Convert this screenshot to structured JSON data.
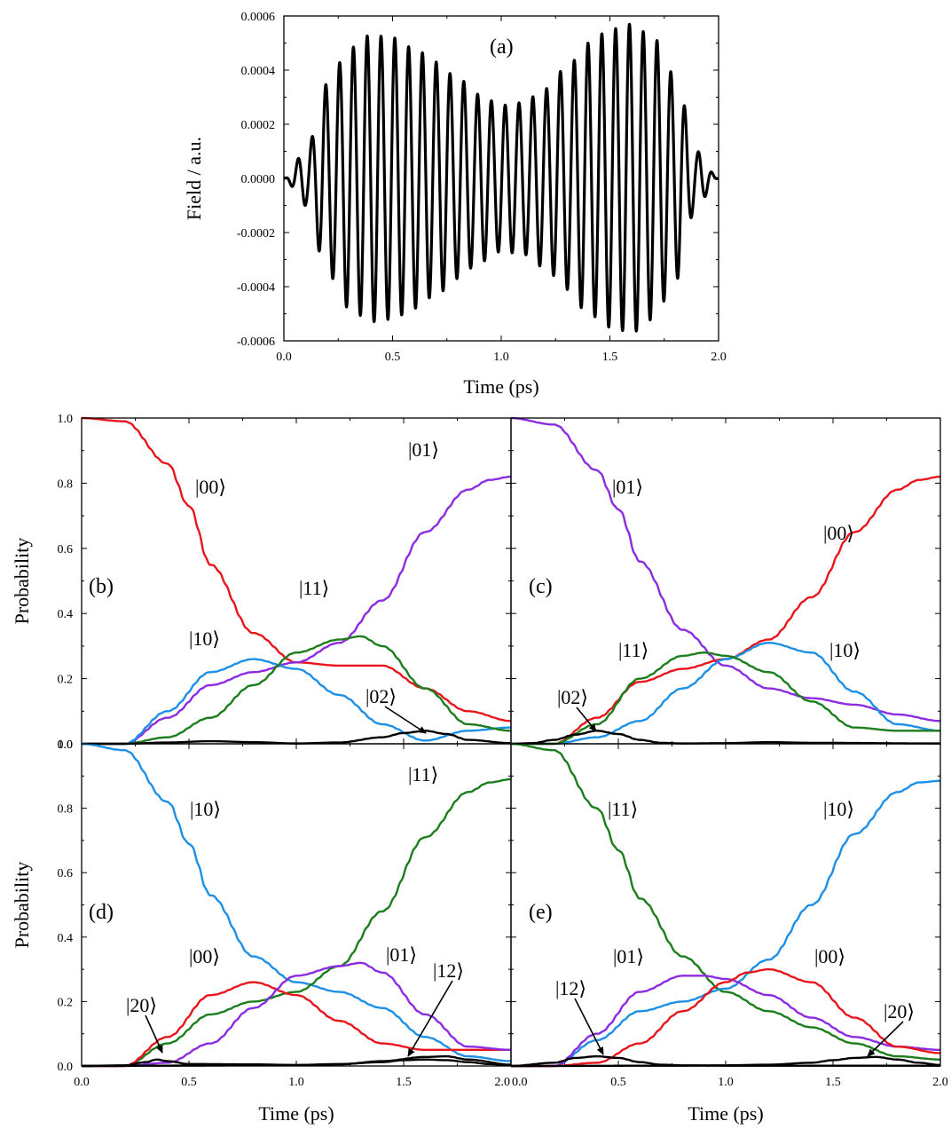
{
  "chart_data": [
    {
      "id": "a",
      "type": "line",
      "panel_label": "(a)",
      "xlabel": "Time (ps)",
      "ylabel": "Field / a.u.",
      "xlim": [
        0,
        2
      ],
      "ylim": [
        -0.0006,
        0.0006
      ],
      "x_ticks": [
        "0.0",
        "0.5",
        "1.0",
        "1.5",
        "2.0"
      ],
      "y_ticks": [
        "-0.0006",
        "-0.0004",
        "-0.0002",
        "0.0000",
        "0.0002",
        "0.0004",
        "0.0006"
      ],
      "series": [
        {
          "color": "#000000",
          "envelope_samples": {
            "x": [
              0,
              0.1,
              0.2,
              0.3,
              0.4,
              0.5,
              0.6,
              0.7,
              0.8,
              0.9,
              1.0,
              1.1,
              1.2,
              1.3,
              1.4,
              1.5,
              1.6,
              1.7,
              1.8,
              1.9,
              2.0
            ],
            "y": [
              0,
              0.0001,
              0.00035,
              0.00048,
              0.00053,
              0.00052,
              0.00048,
              0.00043,
              0.00037,
              0.00031,
              0.00027,
              0.00028,
              0.00033,
              0.00041,
              0.0005,
              0.00055,
              0.00057,
              0.00052,
              0.00038,
              0.0001,
              0
            ]
          },
          "oscillation_period_ps": 0.0635
        }
      ]
    },
    {
      "id": "b",
      "type": "line",
      "panel_label": "(b)",
      "xlabel": "",
      "ylabel": "Probability",
      "xlim": [
        0,
        2
      ],
      "ylim": [
        0,
        1
      ],
      "x_ticks": [],
      "y_ticks": [
        "0.0",
        "0.2",
        "0.4",
        "0.6",
        "0.8",
        "1.0"
      ],
      "series": [
        {
          "name": "|00⟩",
          "color": "#e8161c",
          "x": [
            0,
            0.2,
            0.4,
            0.5,
            0.6,
            0.8,
            1.0,
            1.2,
            1.4,
            1.6,
            1.8,
            2.0
          ],
          "y": [
            1.0,
            0.99,
            0.86,
            0.73,
            0.55,
            0.34,
            0.25,
            0.24,
            0.24,
            0.17,
            0.1,
            0.07
          ]
        },
        {
          "name": "|01⟩",
          "color": "#8b2be2",
          "x": [
            0,
            0.2,
            0.4,
            0.6,
            0.8,
            1.0,
            1.2,
            1.4,
            1.6,
            1.8,
            1.9,
            2.0
          ],
          "y": [
            0.0,
            0.0,
            0.08,
            0.18,
            0.22,
            0.25,
            0.31,
            0.44,
            0.65,
            0.78,
            0.81,
            0.82
          ]
        },
        {
          "name": "|10⟩",
          "color": "#1c8fe6",
          "x": [
            0,
            0.2,
            0.4,
            0.6,
            0.8,
            1.0,
            1.2,
            1.4,
            1.6,
            1.8,
            2.0
          ],
          "y": [
            0.0,
            0.0,
            0.1,
            0.22,
            0.26,
            0.23,
            0.15,
            0.06,
            0.01,
            0.04,
            0.05
          ]
        },
        {
          "name": "|11⟩",
          "color": "#1b7d1b",
          "x": [
            0,
            0.2,
            0.4,
            0.6,
            0.8,
            1.0,
            1.2,
            1.3,
            1.4,
            1.6,
            1.8,
            2.0
          ],
          "y": [
            0.0,
            0.0,
            0.02,
            0.08,
            0.18,
            0.28,
            0.32,
            0.33,
            0.3,
            0.17,
            0.06,
            0.04
          ]
        },
        {
          "name": "|02⟩",
          "color": "#000000",
          "x": [
            0,
            0.2,
            0.4,
            0.6,
            0.8,
            1.0,
            1.2,
            1.4,
            1.5,
            1.6,
            1.7,
            1.8,
            2.0
          ],
          "y": [
            0.0,
            0.0,
            0.004,
            0.008,
            0.005,
            0.001,
            0.004,
            0.02,
            0.033,
            0.04,
            0.03,
            0.012,
            0.002
          ]
        }
      ],
      "annotations": [
        {
          "text": "|00⟩"
        },
        {
          "text": "|01⟩"
        },
        {
          "text": "|10⟩"
        },
        {
          "text": "|11⟩"
        },
        {
          "text": "|02⟩"
        }
      ]
    },
    {
      "id": "c",
      "type": "line",
      "panel_label": "(c)",
      "xlabel": "",
      "ylabel": "",
      "xlim": [
        0,
        2
      ],
      "ylim": [
        0,
        1
      ],
      "x_ticks": [],
      "y_ticks": [],
      "series": [
        {
          "name": "|01⟩",
          "color": "#8b2be2",
          "x": [
            0,
            0.2,
            0.4,
            0.5,
            0.6,
            0.8,
            1.0,
            1.2,
            1.4,
            1.6,
            1.8,
            2.0
          ],
          "y": [
            1.0,
            0.98,
            0.84,
            0.72,
            0.56,
            0.35,
            0.24,
            0.17,
            0.14,
            0.12,
            0.09,
            0.07
          ]
        },
        {
          "name": "|00⟩",
          "color": "#e8161c",
          "x": [
            0,
            0.2,
            0.4,
            0.6,
            0.8,
            1.0,
            1.2,
            1.4,
            1.6,
            1.8,
            1.9,
            2.0
          ],
          "y": [
            0.0,
            0.0,
            0.08,
            0.19,
            0.23,
            0.26,
            0.32,
            0.45,
            0.65,
            0.78,
            0.81,
            0.82
          ]
        },
        {
          "name": "|10⟩",
          "color": "#1c8fe6",
          "x": [
            0,
            0.2,
            0.4,
            0.6,
            0.8,
            1.0,
            1.2,
            1.4,
            1.6,
            1.8,
            2.0
          ],
          "y": [
            0.0,
            0.0,
            0.02,
            0.07,
            0.17,
            0.26,
            0.31,
            0.28,
            0.16,
            0.06,
            0.04
          ]
        },
        {
          "name": "|11⟩",
          "color": "#1b7d1b",
          "x": [
            0,
            0.2,
            0.4,
            0.6,
            0.8,
            0.9,
            1.0,
            1.2,
            1.4,
            1.6,
            1.8,
            2.0
          ],
          "y": [
            0.0,
            0.0,
            0.06,
            0.2,
            0.27,
            0.28,
            0.27,
            0.22,
            0.13,
            0.05,
            0.04,
            0.04
          ]
        },
        {
          "name": "|02⟩",
          "color": "#000000",
          "x": [
            0,
            0.1,
            0.2,
            0.3,
            0.4,
            0.5,
            0.6,
            0.7,
            0.8,
            1.0,
            1.2,
            1.4,
            2.0
          ],
          "y": [
            0.0,
            0.002,
            0.012,
            0.028,
            0.04,
            0.03,
            0.012,
            0.003,
            0.001,
            0.002,
            0.005,
            0.003,
            0.001
          ]
        }
      ],
      "annotations": [
        {
          "text": "|01⟩"
        },
        {
          "text": "|00⟩"
        },
        {
          "text": "|11⟩"
        },
        {
          "text": "|10⟩"
        },
        {
          "text": "|02⟩"
        }
      ]
    },
    {
      "id": "d",
      "type": "line",
      "panel_label": "(d)",
      "xlabel": "Time (ps)",
      "ylabel": "Probability",
      "xlim": [
        0,
        2
      ],
      "ylim": [
        0,
        1
      ],
      "x_ticks": [
        "0.0",
        "0.5",
        "1.0",
        "1.5",
        "2.0"
      ],
      "y_ticks": [
        "0.0",
        "0.2",
        "0.4",
        "0.6",
        "0.8",
        "1.0"
      ],
      "series": [
        {
          "name": "|10⟩",
          "color": "#1c8fe6",
          "x": [
            0,
            0.2,
            0.4,
            0.5,
            0.6,
            0.8,
            1.0,
            1.2,
            1.4,
            1.6,
            1.8,
            2.0
          ],
          "y": [
            1.0,
            0.98,
            0.82,
            0.69,
            0.53,
            0.34,
            0.26,
            0.23,
            0.18,
            0.09,
            0.03,
            0.015
          ]
        },
        {
          "name": "|11⟩",
          "color": "#1b7d1b",
          "x": [
            0,
            0.2,
            0.4,
            0.6,
            0.8,
            1.0,
            1.2,
            1.4,
            1.6,
            1.8,
            1.9,
            2.0
          ],
          "y": [
            0.0,
            0.0,
            0.07,
            0.16,
            0.2,
            0.23,
            0.31,
            0.48,
            0.71,
            0.85,
            0.88,
            0.89
          ]
        },
        {
          "name": "|00⟩",
          "color": "#e8161c",
          "x": [
            0,
            0.2,
            0.4,
            0.6,
            0.8,
            1.0,
            1.2,
            1.4,
            1.6,
            1.8,
            2.0
          ],
          "y": [
            0.0,
            0.0,
            0.09,
            0.22,
            0.26,
            0.22,
            0.14,
            0.07,
            0.05,
            0.05,
            0.05
          ]
        },
        {
          "name": "|01⟩",
          "color": "#8b2be2",
          "x": [
            0,
            0.2,
            0.4,
            0.6,
            0.8,
            1.0,
            1.2,
            1.3,
            1.4,
            1.6,
            1.8,
            2.0
          ],
          "y": [
            0.0,
            0.0,
            0.01,
            0.07,
            0.18,
            0.28,
            0.31,
            0.32,
            0.29,
            0.16,
            0.06,
            0.05
          ]
        },
        {
          "name": "|20⟩",
          "color": "#000000",
          "x": [
            0,
            0.2,
            0.3,
            0.35,
            0.4,
            0.5,
            0.8,
            1.0,
            1.2,
            1.4,
            1.6,
            1.7,
            1.8,
            2.0
          ],
          "y": [
            0.0,
            0.002,
            0.012,
            0.02,
            0.015,
            0.006,
            0.005,
            0.003,
            0.005,
            0.015,
            0.028,
            0.03,
            0.02,
            0.004
          ]
        },
        {
          "name": "|12⟩",
          "color": "#000000",
          "x": [
            0,
            0.4,
            0.8,
            1.0,
            1.2,
            1.4,
            1.5,
            1.6,
            1.7,
            1.8,
            1.9,
            2.0
          ],
          "y": [
            0.0,
            0.001,
            0.002,
            0.003,
            0.006,
            0.012,
            0.018,
            0.02,
            0.018,
            0.012,
            0.006,
            0.002
          ]
        }
      ],
      "annotations": [
        {
          "text": "|10⟩"
        },
        {
          "text": "|11⟩"
        },
        {
          "text": "|00⟩"
        },
        {
          "text": "|01⟩"
        },
        {
          "text": "|20⟩"
        },
        {
          "text": "|12⟩"
        }
      ]
    },
    {
      "id": "e",
      "type": "line",
      "panel_label": "(e)",
      "xlabel": "Time (ps)",
      "ylabel": "",
      "xlim": [
        0,
        2
      ],
      "ylim": [
        0,
        1
      ],
      "x_ticks": [
        "0.0",
        "0.5",
        "1.0",
        "1.5",
        "2.0"
      ],
      "y_ticks": [],
      "series": [
        {
          "name": "|11⟩",
          "color": "#1b7d1b",
          "x": [
            0,
            0.2,
            0.4,
            0.5,
            0.6,
            0.8,
            1.0,
            1.2,
            1.4,
            1.6,
            1.8,
            2.0
          ],
          "y": [
            1.0,
            0.98,
            0.8,
            0.67,
            0.52,
            0.34,
            0.23,
            0.17,
            0.12,
            0.07,
            0.03,
            0.02
          ]
        },
        {
          "name": "|10⟩",
          "color": "#1c8fe6",
          "x": [
            0,
            0.2,
            0.4,
            0.6,
            0.8,
            1.0,
            1.2,
            1.4,
            1.6,
            1.8,
            1.9,
            2.0
          ],
          "y": [
            0.0,
            0.0,
            0.08,
            0.17,
            0.2,
            0.24,
            0.33,
            0.5,
            0.72,
            0.85,
            0.88,
            0.885
          ]
        },
        {
          "name": "|01⟩",
          "color": "#8b2be2",
          "x": [
            0,
            0.2,
            0.4,
            0.6,
            0.8,
            0.9,
            1.0,
            1.2,
            1.4,
            1.6,
            1.8,
            2.0
          ],
          "y": [
            0.0,
            0.0,
            0.1,
            0.23,
            0.28,
            0.28,
            0.27,
            0.22,
            0.15,
            0.09,
            0.06,
            0.05
          ]
        },
        {
          "name": "|00⟩",
          "color": "#e8161c",
          "x": [
            0,
            0.2,
            0.4,
            0.6,
            0.8,
            1.0,
            1.1,
            1.2,
            1.4,
            1.6,
            1.8,
            2.0
          ],
          "y": [
            0.0,
            0.0,
            0.01,
            0.07,
            0.17,
            0.26,
            0.29,
            0.3,
            0.26,
            0.15,
            0.06,
            0.04
          ]
        },
        {
          "name": "|12⟩",
          "color": "#000000",
          "x": [
            0,
            0.2,
            0.3,
            0.4,
            0.5,
            0.6,
            0.7,
            0.8,
            1.0,
            2.0
          ],
          "y": [
            0.0,
            0.01,
            0.025,
            0.03,
            0.025,
            0.012,
            0.004,
            0.002,
            0.001,
            0.001
          ]
        },
        {
          "name": "|20⟩",
          "color": "#000000",
          "x": [
            0,
            0.8,
            1.0,
            1.2,
            1.4,
            1.5,
            1.6,
            1.7,
            1.8,
            1.9,
            2.0
          ],
          "y": [
            0.0,
            0.001,
            0.002,
            0.004,
            0.01,
            0.018,
            0.025,
            0.028,
            0.02,
            0.01,
            0.003
          ]
        }
      ],
      "annotations": [
        {
          "text": "|11⟩"
        },
        {
          "text": "|10⟩"
        },
        {
          "text": "|01⟩"
        },
        {
          "text": "|00⟩"
        },
        {
          "text": "|12⟩"
        },
        {
          "text": "|20⟩"
        }
      ]
    }
  ]
}
